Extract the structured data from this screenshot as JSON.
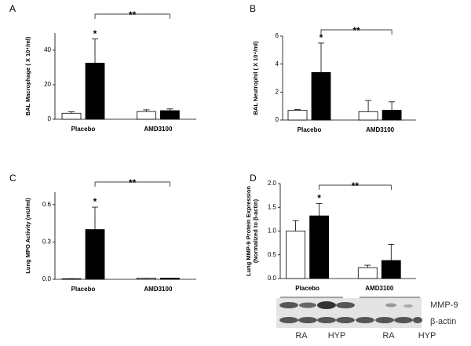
{
  "chart_data": [
    {
      "type": "bar",
      "panel": "A",
      "y_label": "BAL Macrophage ( X 10⁴/ml)",
      "categories": [
        "Placebo",
        "AMD3100"
      ],
      "series": [
        {
          "color": "#ffffff",
          "values": [
            3.5,
            4.5
          ],
          "errors": [
            0.8,
            1.0
          ]
        },
        {
          "color": "#000000",
          "values": [
            32.5,
            5.0
          ],
          "errors": [
            14,
            1.0
          ]
        }
      ],
      "ylim": [
        0,
        50
      ],
      "yticks": [
        0,
        20,
        40
      ],
      "annotations": [
        "*",
        "**"
      ]
    },
    {
      "type": "bar",
      "panel": "B",
      "y_label": "BAL Neutrophil ( X 10⁴/ml)",
      "categories": [
        "Placebo",
        "AMD3100"
      ],
      "series": [
        {
          "color": "#ffffff",
          "values": [
            0.7,
            0.6
          ],
          "errors": [
            0.05,
            0.8
          ]
        },
        {
          "color": "#000000",
          "values": [
            3.4,
            0.7
          ],
          "errors": [
            2.1,
            0.6
          ]
        }
      ],
      "ylim": [
        0,
        6
      ],
      "yticks": [
        0,
        2,
        4,
        6
      ],
      "annotations": [
        "*",
        "**"
      ]
    },
    {
      "type": "bar",
      "panel": "C",
      "y_label": "Lung MPO Activity (mU/ml)",
      "categories": [
        "Placebo",
        "AMD3100"
      ],
      "series": [
        {
          "color": "#ffffff",
          "values": [
            0.005,
            0.01
          ],
          "errors": [
            0,
            0
          ]
        },
        {
          "color": "#000000",
          "values": [
            0.4,
            0.01
          ],
          "errors": [
            0.18,
            0
          ]
        }
      ],
      "ylim": [
        0,
        0.7
      ],
      "yticks": [
        {
          "value": 0,
          "label": "0.0"
        },
        {
          "value": 0.3,
          "label": "0.3"
        },
        {
          "value": 0.6,
          "label": "0.6"
        }
      ],
      "annotations": [
        "*",
        "**"
      ]
    },
    {
      "type": "bar",
      "panel": "D",
      "y_label": "Lung MMP-9 Protein Expression",
      "y_label2": "(Normalized to β-actin)",
      "categories": [
        "Placebo",
        "AMD3100"
      ],
      "series": [
        {
          "color": "#ffffff",
          "values": [
            1.0,
            0.23
          ],
          "errors": [
            0.22,
            0.05
          ]
        },
        {
          "color": "#000000",
          "values": [
            1.32,
            0.38
          ],
          "errors": [
            0.26,
            0.34
          ]
        }
      ],
      "ylim": [
        0,
        2
      ],
      "yticks": [
        {
          "value": 0,
          "label": "0.0"
        },
        {
          "value": 0.5,
          "label": "0.5"
        },
        {
          "value": 1,
          "label": "1.0"
        },
        {
          "value": 1.5,
          "label": "1.5"
        },
        {
          "value": 2,
          "label": "2.0"
        }
      ],
      "annotations": [
        "*",
        "**"
      ],
      "blot": {
        "bands": [
          "MMP-9",
          "β-actin"
        ],
        "lanes": [
          "RA",
          "HYP",
          "RA",
          "HYP"
        ]
      }
    }
  ]
}
